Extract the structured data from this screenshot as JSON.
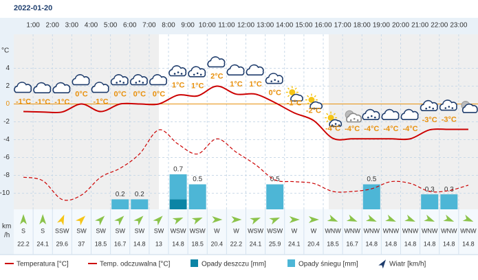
{
  "chart_data": {
    "type": "weather",
    "title": "2022-01-20",
    "x_labels": [
      "1:00",
      "2:00",
      "3:00",
      "4:00",
      "5:00",
      "6:00",
      "7:00",
      "8:00",
      "9:00",
      "10:00",
      "11:00",
      "12:00",
      "13:00",
      "14:00",
      "15:00",
      "16:00",
      "17:00",
      "18:00",
      "19:00",
      "20:00",
      "21:00",
      "22:00",
      "23:00"
    ],
    "y_label": "°C",
    "ylim": [
      -11.8,
      7.8
    ],
    "yticks": [
      4,
      2,
      0,
      -2,
      -4,
      -6,
      -8,
      -10
    ],
    "zero_line_color": "#e8900c",
    "y2lim": [
      0,
      3.5
    ],
    "grid": true,
    "series": [
      {
        "name": "Temperatura [°C]",
        "color": "#cc0000",
        "values": [
          -0.85,
          -0.9,
          -0.9,
          0,
          -0.85,
          0,
          0,
          0,
          1,
          0.9,
          2,
          1.1,
          1.1,
          0.15,
          -1,
          -1.85,
          -3.85,
          -3.9,
          -3.9,
          -3.9,
          -3.9,
          -2.9,
          -2.85,
          -2.85
        ],
        "value_labels": [
          "-1°C",
          "-1°C",
          "-1°C",
          "0°C",
          "-1°C",
          "0°C",
          "0°C",
          "0°C",
          "1°C",
          "1°C",
          "2°C",
          "1°C",
          "1°C",
          "0°C",
          "-1°C",
          "-2°C",
          "-4°C",
          "-4°C",
          "-4°C",
          "-4°C",
          "-4°C",
          "-3°C",
          "-3°C",
          null
        ],
        "label_color": "#e8900c"
      },
      {
        "name": "Temp. odczuwalna [°C]",
        "color": "#cc0000",
        "dashed": true,
        "values": [
          -8.2,
          -8.6,
          -10.7,
          -10.2,
          -8.2,
          -7.2,
          -5.6,
          -2.9,
          -4.5,
          -5.6,
          -3.9,
          -5.4,
          -6.8,
          -8.5,
          -8.7,
          -8.9,
          -9.8,
          -9.8,
          -9.5,
          -8.7,
          -8.9,
          -9.8,
          -9.7,
          -9.1
        ]
      },
      {
        "name": "Opady deszczu [mm]",
        "color": "#0b84a5",
        "axis": "y2",
        "values": [
          0,
          0,
          0,
          0,
          0,
          0,
          0,
          0,
          0.2,
          0,
          0,
          0,
          0,
          0,
          0,
          0,
          0,
          0,
          0,
          0,
          0,
          0,
          0,
          0
        ]
      },
      {
        "name": "Opady śniegu [mm]",
        "color": "#4db6d6",
        "axis": "y2",
        "values": [
          0,
          0,
          0,
          0,
          0,
          0.2,
          0.2,
          0,
          0.5,
          0.5,
          0,
          0,
          0,
          0.5,
          0,
          0,
          0,
          0,
          0.5,
          0,
          0,
          0.3,
          0.3,
          0
        ]
      }
    ],
    "precip_labels": [
      null,
      null,
      null,
      null,
      null,
      "0.2",
      "0.2",
      null,
      "0.7",
      "0.5",
      null,
      null,
      null,
      "0.5",
      null,
      null,
      null,
      null,
      "0.5",
      null,
      null,
      "0.3",
      "0.3",
      null
    ],
    "wind": {
      "name": "Wiatr [km/h]",
      "unit": [
        "km",
        "/h"
      ],
      "legend_color": "#1d3b6b",
      "directions": [
        "S",
        "S",
        "SSW",
        "SW",
        "SW",
        "SW",
        "SW",
        "SW",
        "WSW",
        "WSW",
        "W",
        "W",
        "WSW",
        "WSW",
        "W",
        "W",
        "WNW",
        "WNW",
        "WNW",
        "WNW",
        "WNW",
        "WNW",
        "WNW",
        "WNW"
      ],
      "speeds": [
        "22.2",
        "24.1",
        "29.6",
        "37",
        "18.5",
        "16.7",
        "14.8",
        "13",
        "14.8",
        "18.5",
        "20.4",
        "22.2",
        "24.1",
        "25.9",
        "24.1",
        "20.4",
        "18.5",
        "16.7",
        "14.8",
        "14.8",
        "14.8",
        "14.8",
        "14.8",
        "14.8"
      ],
      "colors": [
        "#8bc34a",
        "#8bc34a",
        "#f5c518",
        "#f5c518",
        "#8bc34a",
        "#8bc34a",
        "#8bc34a",
        "#8bc34a",
        "#8bc34a",
        "#8bc34a",
        "#8bc34a",
        "#8bc34a",
        "#8bc34a",
        "#8bc34a",
        "#8bc34a",
        "#8bc34a",
        "#8bc34a",
        "#8bc34a",
        "#8bc34a",
        "#8bc34a",
        "#8bc34a",
        "#8bc34a",
        "#8bc34a",
        "#8bc34a"
      ]
    }
  }
}
